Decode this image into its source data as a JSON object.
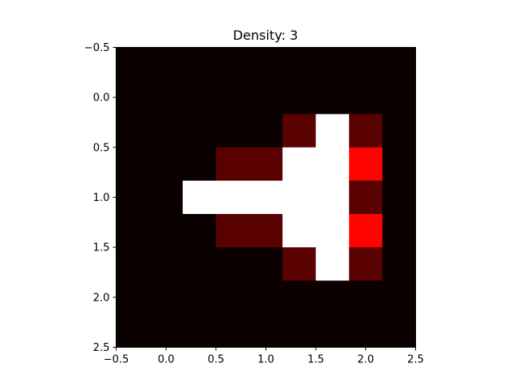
{
  "chart_data": {
    "type": "heatmap",
    "title": "Density: 3",
    "xlabel": "",
    "ylabel": "",
    "xlim": [
      -0.5,
      2.5
    ],
    "ylim": [
      2.5,
      -0.5
    ],
    "x_ticks": [
      "−0.5",
      "0.0",
      "0.5",
      "1.0",
      "1.5",
      "2.0",
      "2.5"
    ],
    "y_ticks": [
      "−0.5",
      "0.0",
      "0.5",
      "1.0",
      "1.5",
      "2.0",
      "2.5"
    ],
    "x_tick_values": [
      -0.5,
      0.0,
      0.5,
      1.0,
      1.5,
      2.0,
      2.5
    ],
    "y_tick_values": [
      -0.5,
      0.0,
      0.5,
      1.0,
      1.5,
      2.0,
      2.5
    ],
    "grid": false,
    "colormap": "hot",
    "rows": 9,
    "cols": 9,
    "values": [
      [
        0.0,
        0.0,
        0.0,
        0.0,
        0.0,
        0.0,
        0.0,
        0.0,
        0.0
      ],
      [
        0.0,
        0.0,
        0.0,
        0.0,
        0.0,
        0.0,
        0.0,
        0.0,
        0.0
      ],
      [
        0.0,
        0.0,
        0.0,
        0.0,
        0.0,
        0.12,
        1.0,
        0.12,
        0.0
      ],
      [
        0.0,
        0.0,
        0.0,
        0.12,
        0.12,
        1.0,
        1.0,
        0.38,
        0.0
      ],
      [
        0.0,
        0.0,
        1.0,
        1.0,
        1.0,
        1.0,
        1.0,
        0.12,
        0.0
      ],
      [
        0.0,
        0.0,
        0.0,
        0.12,
        0.12,
        1.0,
        1.0,
        0.38,
        0.0
      ],
      [
        0.0,
        0.0,
        0.0,
        0.0,
        0.0,
        0.12,
        1.0,
        0.12,
        0.0
      ],
      [
        0.0,
        0.0,
        0.0,
        0.0,
        0.0,
        0.0,
        0.0,
        0.0,
        0.0
      ],
      [
        0.0,
        0.0,
        0.0,
        0.0,
        0.0,
        0.0,
        0.0,
        0.0,
        0.0
      ]
    ]
  }
}
